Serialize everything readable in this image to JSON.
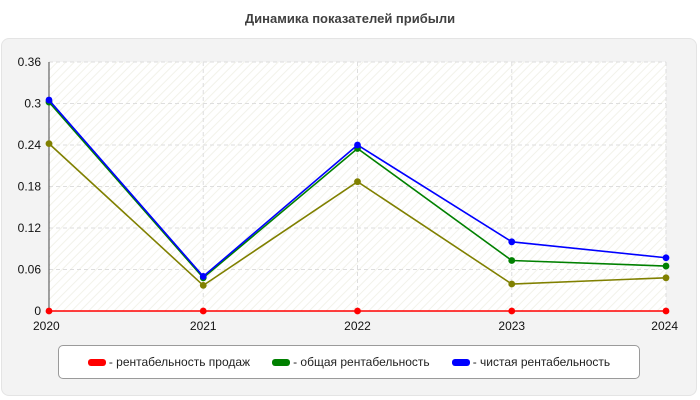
{
  "chart_data": {
    "type": "line",
    "title": "Динамика показателей прибыли",
    "x": [
      "2020",
      "2021",
      "2022",
      "2023",
      "2024"
    ],
    "ylim": [
      0,
      0.36
    ],
    "yticks": [
      "0",
      "0.06",
      "0.12",
      "0.18",
      "0.24",
      "0.3",
      "0.36"
    ],
    "grid": true,
    "legend_position": "bottom",
    "series": [
      {
        "name": "рентабельность продаж",
        "color": "#ff0000",
        "values": [
          0,
          0,
          0,
          0,
          0
        ]
      },
      {
        "name": "общая рентабельность",
        "color": "#008000",
        "values": [
          0.302,
          0.048,
          0.235,
          0.073,
          0.065
        ]
      },
      {
        "name": "чистая рентабельность",
        "color": "#0000ff",
        "values": [
          0.305,
          0.05,
          0.24,
          0.1,
          0.077
        ]
      },
      {
        "name": "",
        "color": "#808000",
        "values": [
          0.242,
          0.037,
          0.187,
          0.039,
          0.048
        ]
      }
    ]
  },
  "legend": {
    "items": [
      {
        "label": "- рентабельность продаж",
        "color": "#ff0000"
      },
      {
        "label": "- общая рентабельность",
        "color": "#008000"
      },
      {
        "label": "- чистая рентабельность",
        "color": "#0000ff"
      }
    ]
  }
}
